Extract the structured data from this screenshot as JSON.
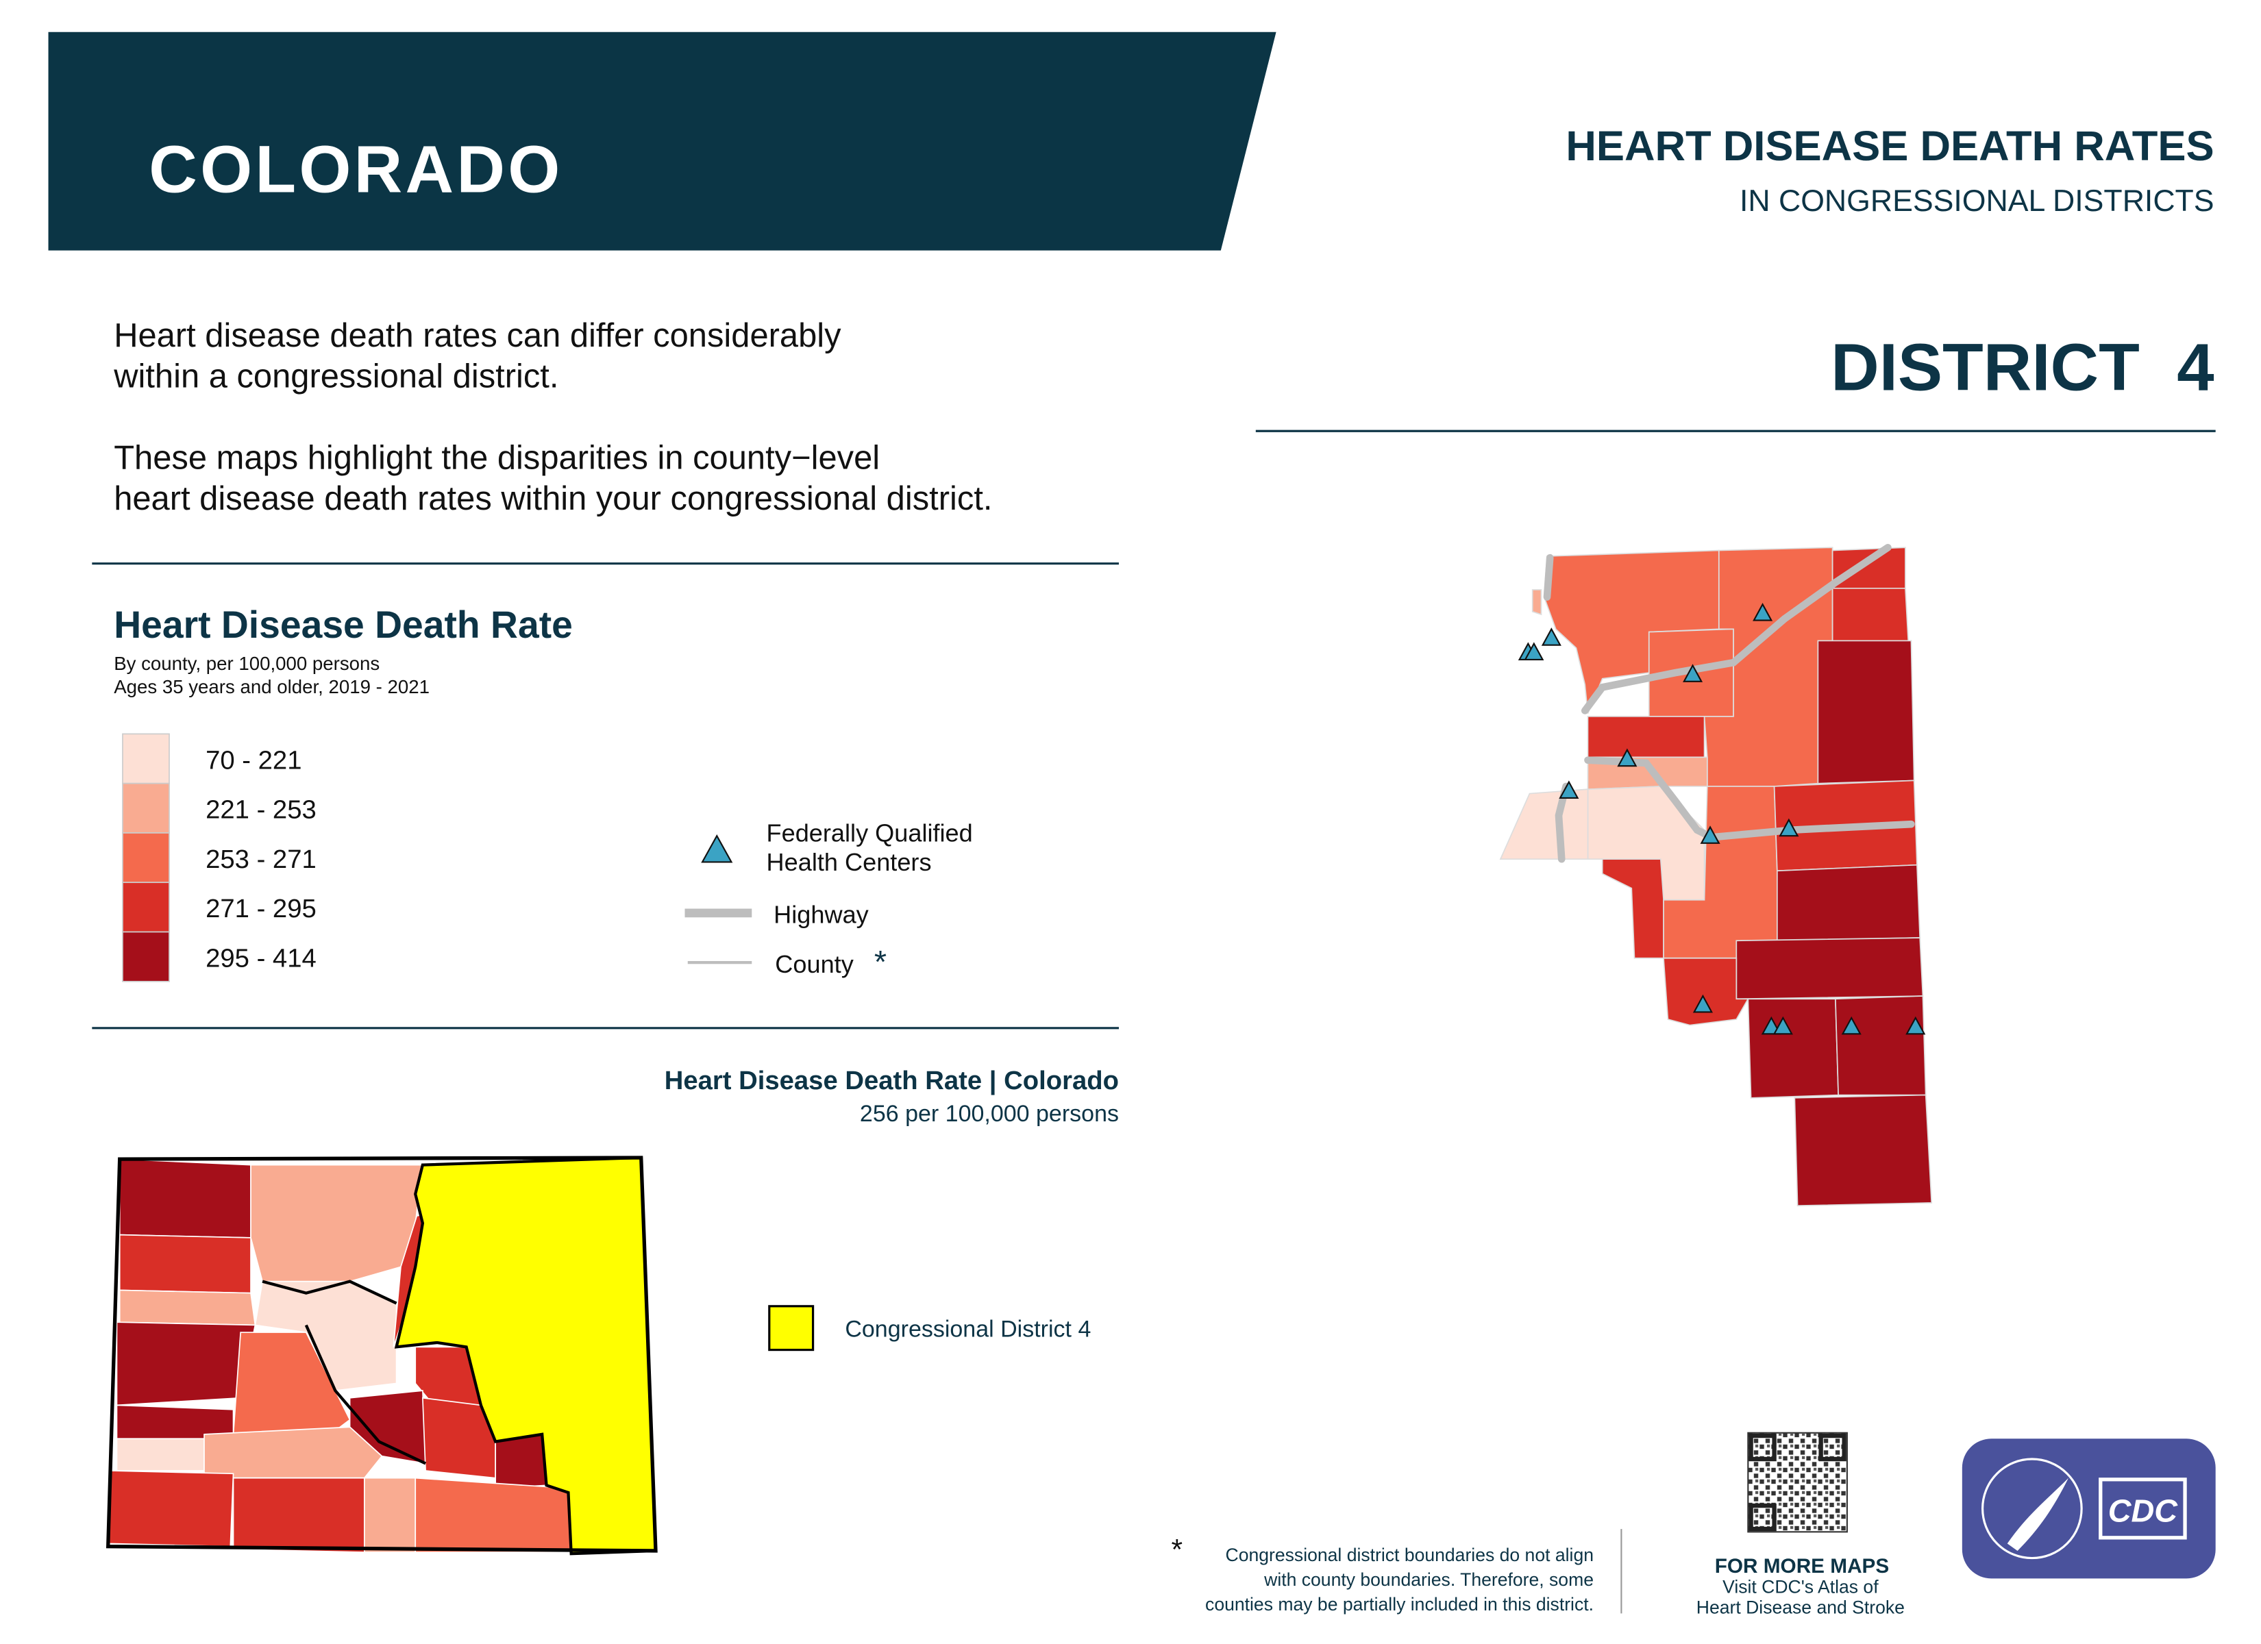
{
  "header": {
    "state": "COLORADO",
    "title": "HEART DISEASE DEATH RATES",
    "subtitle": "IN CONGRESSIONAL DISTRICTS",
    "district": "DISTRICT  4"
  },
  "intro": [
    "Heart disease death rates can differ considerably",
    "within a congressional district.",
    "These maps highlight the disparities in county−level",
    "heart disease death rates within your congressional district."
  ],
  "legend": {
    "title": "Heart Disease Death Rate",
    "notes": [
      "By county, per 100,000 persons",
      "Ages 35 years and older, 2019 - 2021"
    ],
    "classes": [
      {
        "label": "70 - 221",
        "color": "#fde0d5"
      },
      {
        "label": "221 - 253",
        "color": "#f9ab91"
      },
      {
        "label": "253 - 271",
        "color": "#f46a4d"
      },
      {
        "label": "271 - 295",
        "color": "#d92f27"
      },
      {
        "label": "295 - 414",
        "color": "#a50f1a"
      }
    ],
    "health_centers": [
      "Federally Qualified",
      "Health Centers"
    ],
    "highway": "Highway",
    "county": "County",
    "county_star": "*"
  },
  "state_map": {
    "title": "Heart Disease Death Rate | Colorado",
    "rate": "256 per 100,000 persons",
    "district_label": "Congressional District 4",
    "district_color": "#ffff00"
  },
  "footer": {
    "note_star": "*",
    "note": [
      "Congressional district boundaries do not align",
      "with county boundaries. Therefore, some",
      "counties may be partially included in this district."
    ],
    "more_title": "FOR MORE MAPS",
    "more": [
      "Visit CDC's Atlas of",
      "Heart Disease and Stroke"
    ],
    "logo": "CDC"
  }
}
